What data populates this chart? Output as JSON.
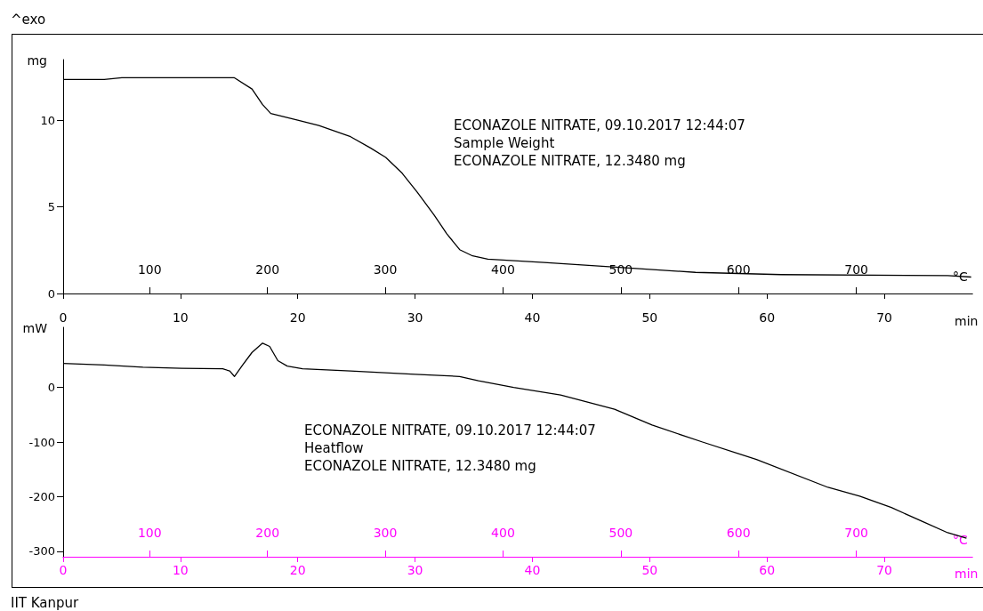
{
  "chart_data": [
    {
      "type": "line",
      "ylabel": "mg",
      "xlabel": "min",
      "x2label": "°C",
      "marker": "none",
      "grid": false,
      "annotations": [
        "^exo",
        "ECONAZOLE NITRATE, 09.10.2017 12:44:07",
        "Sample Weight",
        "ECONAZOLE NITRATE, 12.3480 mg"
      ],
      "xlim": [
        0,
        77.5
      ],
      "xticks": [
        0,
        10,
        20,
        30,
        40,
        50,
        60,
        70
      ],
      "x2lim": [
        26.5,
        798.5
      ],
      "x2ticks": [
        100,
        200,
        300,
        400,
        500,
        600,
        700
      ],
      "ylim": [
        0,
        13.5
      ],
      "yticks": [
        0,
        5,
        10
      ],
      "series": [
        {
          "color": "#000000",
          "x": [
            0,
            3.5,
            5,
            10,
            14.6,
            16.1,
            17.0,
            17.7,
            20.0,
            21.8,
            24.5,
            26.2,
            27.5,
            28.9,
            30.2,
            31.6,
            32.7,
            33.8,
            34.9,
            36.2,
            41,
            47.7,
            53.9,
            61.2,
            75.4,
            77.4
          ],
          "values": [
            12.35,
            12.35,
            12.45,
            12.45,
            12.45,
            11.8,
            10.9,
            10.39,
            10.0,
            9.69,
            9.05,
            8.4,
            7.85,
            6.94,
            5.83,
            4.55,
            3.45,
            2.53,
            2.17,
            1.98,
            1.79,
            1.5,
            1.22,
            1.09,
            1.03,
            0.95
          ]
        }
      ]
    },
    {
      "type": "line",
      "ylabel": "mW",
      "xlabel": "min",
      "x2label": "°C",
      "marker": "none",
      "grid": false,
      "annotations": [
        "ECONAZOLE NITRATE, 09.10.2017 12:44:07",
        "Heatflow",
        "ECONAZOLE NITRATE, 12.3480 mg",
        "IIT Kanpur"
      ],
      "xlim": [
        0,
        77.5
      ],
      "xticks": [
        0,
        10,
        20,
        30,
        40,
        50,
        60,
        70
      ],
      "x2lim": [
        26.5,
        798.5
      ],
      "x2ticks": [
        100,
        200,
        300,
        400,
        500,
        600,
        700
      ],
      "ylim": [
        -310,
        110
      ],
      "yticks": [
        -300,
        -200,
        -100,
        0
      ],
      "series": [
        {
          "color": "#000000",
          "x": [
            0,
            3.5,
            6.8,
            10.1,
            13.6,
            14.2,
            14.6,
            15.3,
            16.1,
            17.0,
            17.6,
            18.3,
            19.1,
            20.4,
            24.5,
            30.0,
            33.8,
            35.4,
            38.4,
            42.4,
            47.0,
            50.2,
            54.5,
            59.1,
            65.2,
            67.9,
            70.6,
            73.3,
            75.4,
            77.0
          ],
          "values": [
            44,
            41,
            37,
            35,
            34,
            30,
            20,
            41,
            64,
            81,
            75,
            49,
            39,
            34,
            30,
            24,
            20,
            12,
            0,
            -14,
            -40,
            -69,
            -100,
            -132,
            -183,
            -199,
            -220,
            -246,
            -266,
            -276
          ]
        }
      ]
    }
  ]
}
